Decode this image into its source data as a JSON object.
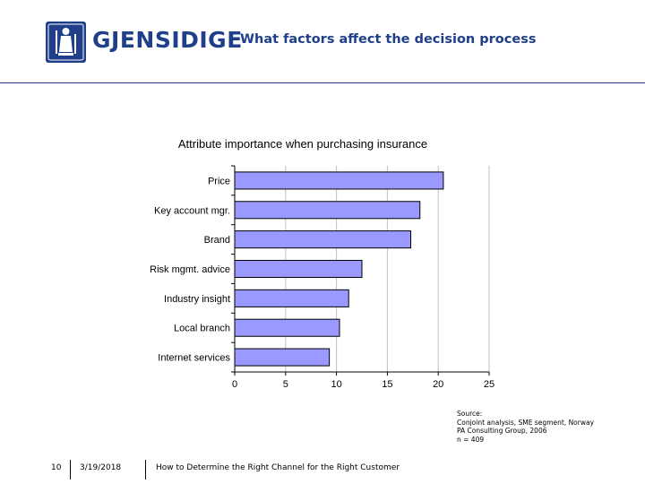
{
  "header": {
    "brand": "GJENSIDIGE",
    "title": "What factors affect the decision process"
  },
  "chart_data": {
    "type": "bar",
    "orientation": "horizontal",
    "title": "Attribute importance when purchasing insurance",
    "categories": [
      "Price",
      "Key account mgr.",
      "Brand",
      "Risk mgmt. advice",
      "Industry insight",
      "Local branch",
      "Internet services"
    ],
    "values": [
      20.5,
      18.2,
      17.3,
      12.5,
      11.2,
      10.3,
      9.3
    ],
    "xlim": [
      0,
      25
    ],
    "xticks": [
      0,
      5,
      10,
      15,
      20,
      25
    ],
    "grid": true,
    "bar_color": "#9999ff",
    "xlabel": "",
    "ylabel": ""
  },
  "source": {
    "lines": [
      "Source:",
      "Conjoint analysis, SME segment, Norway",
      "PA Consulting Group, 2006",
      "n = 409"
    ]
  },
  "footer": {
    "page": "10",
    "date": "3/19/2018",
    "text": "How to Determine the Right Channel for the Right Customer"
  },
  "colors": {
    "brand": "#1f3f8a",
    "bar": "#9999ff"
  }
}
